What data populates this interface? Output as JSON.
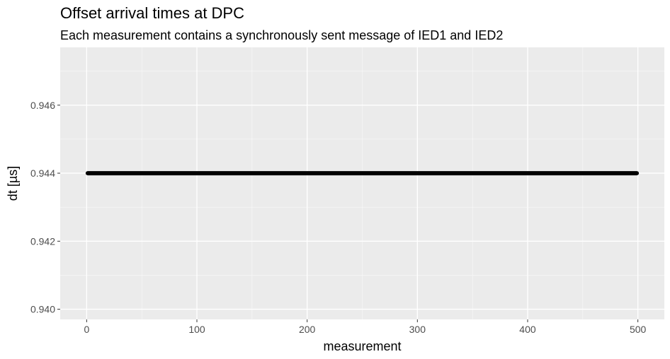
{
  "chart_data": {
    "type": "line",
    "title": "Offset arrival times at DPC",
    "subtitle": "Each measurement contains a synchronously sent message of IED1 and IED2",
    "xlabel": "measurement",
    "ylabel": "dt [µs]",
    "xlim": [
      -24,
      524
    ],
    "ylim": [
      0.9397,
      0.9477
    ],
    "x_ticks": [
      0,
      100,
      200,
      300,
      400,
      500
    ],
    "x_tick_labels": [
      "0",
      "100",
      "200",
      "300",
      "400",
      "500"
    ],
    "y_ticks": [
      0.94,
      0.942,
      0.944,
      0.946
    ],
    "y_tick_labels": [
      "0.940",
      "0.942",
      "0.944",
      "0.946"
    ],
    "grid": true,
    "series": [
      {
        "x_start": 1,
        "x_end": 499,
        "y": 0.944,
        "color": "#000000"
      }
    ]
  },
  "colors": {
    "panel_background": "#ebebeb",
    "grid_major": "#ffffff",
    "tick_text": "#4d4d4d"
  }
}
